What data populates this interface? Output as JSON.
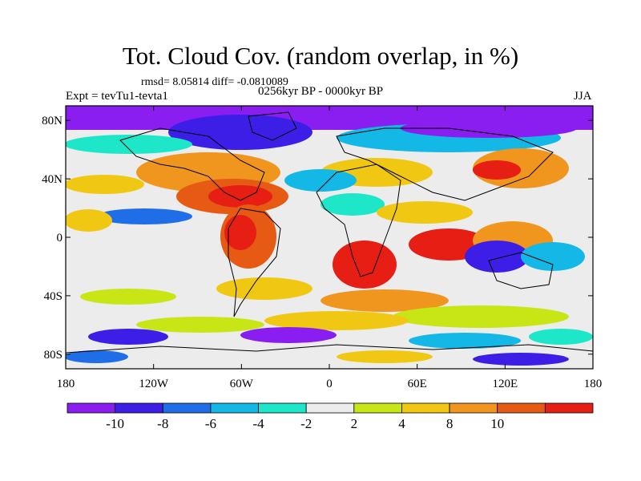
{
  "header": {
    "title": "Tot. Cloud Cov. (random overlap, in %)",
    "stats": "rmsd= 8.05814 diff= -0.0810089",
    "experiment": "Expt = tevTu1-tevta1",
    "period": "0256kyr BP - 0000kyr BP",
    "season": "JJA"
  },
  "axes": {
    "lon_labels": [
      "180",
      "120W",
      "60W",
      "0",
      "60E",
      "120E",
      "180"
    ],
    "lat_labels": [
      "80N",
      "40N",
      "0",
      "40S",
      "80S"
    ]
  },
  "colorbar": {
    "labels": [
      "-10",
      "-8",
      "-6",
      "-4",
      "-2",
      "2",
      "4",
      "8",
      "10"
    ],
    "colors": [
      "#8a1df0",
      "#3c1ee6",
      "#1f6ee8",
      "#14b8e6",
      "#1ee6c8",
      "#ececec",
      "#c8e616",
      "#f0c814",
      "#f0961e",
      "#e65a14",
      "#e61e14"
    ]
  }
}
